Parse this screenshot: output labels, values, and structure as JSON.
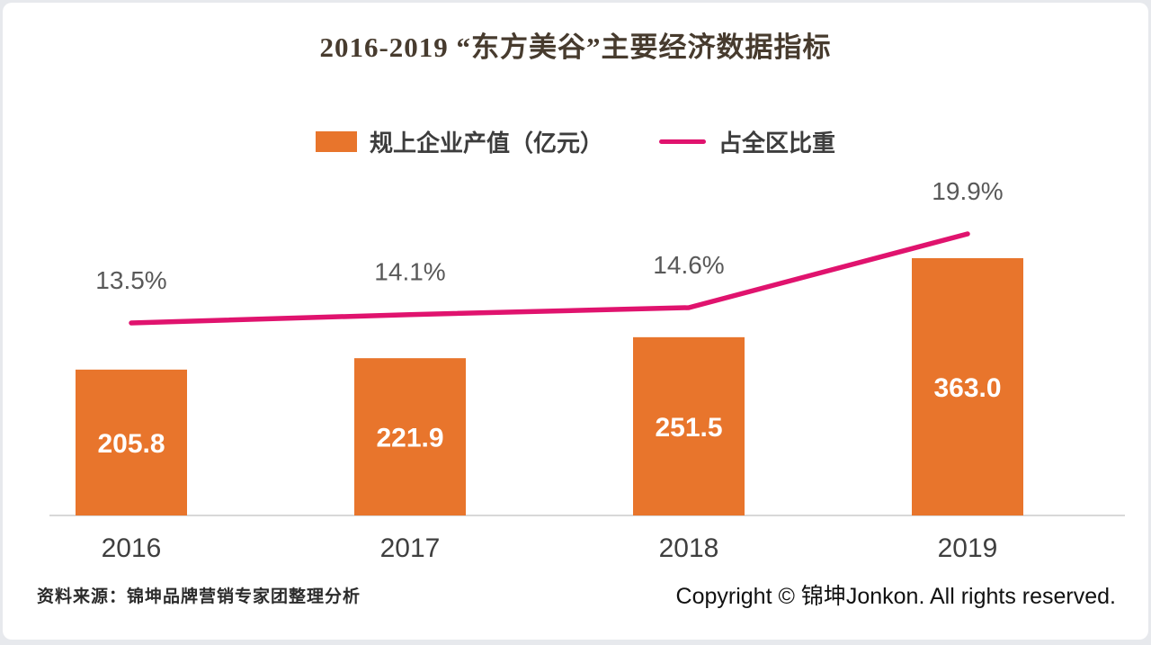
{
  "title": "2016-2019 “东方美谷”主要经济数据指标",
  "colors": {
    "bar": "#E8752C",
    "line": "#E0136E",
    "bar_value_text": "#FFFFFF",
    "pct_label_text": "#595959",
    "x_label_text": "#3F3F3F",
    "axis_line": "#D8D8D8",
    "title_text": "#473B2E"
  },
  "chart_data": {
    "type": "bar+line",
    "title": "2016-2019 “东方美谷”主要经济数据指标",
    "categories": [
      "2016",
      "2017",
      "2018",
      "2019"
    ],
    "series": [
      {
        "name": "规上企业产值（亿元）",
        "type": "bar",
        "values": [
          205.8,
          221.9,
          251.5,
          363.0
        ],
        "color": "#E8752C"
      },
      {
        "name": "占全区比重",
        "type": "line",
        "values": [
          13.5,
          14.1,
          14.6,
          19.9
        ],
        "unit": "%",
        "color": "#E0136E"
      }
    ],
    "bar_value_labels": [
      "205.8",
      "221.9",
      "251.5",
      "363.0"
    ],
    "line_value_labels": [
      "13.5%",
      "14.1%",
      "14.6%",
      "19.9%"
    ],
    "legend_position": "top",
    "gridlines": false,
    "y_axis_visible": false
  },
  "footer": {
    "source": "资料来源：锦坤品牌营销专家团整理分析",
    "copyright": "Copyright © 锦坤Jonkon. All rights reserved."
  }
}
